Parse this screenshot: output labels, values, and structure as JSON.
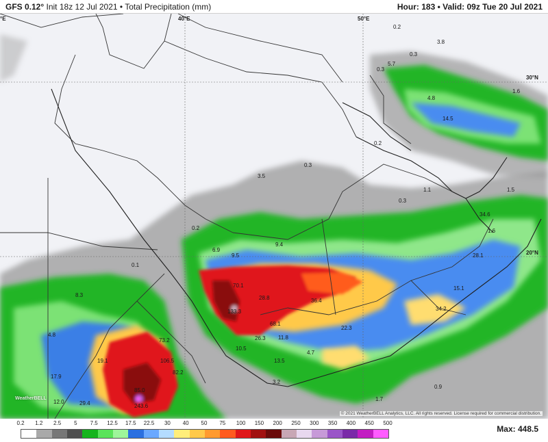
{
  "header": {
    "model": "GFS 0.12°",
    "init": "Init 18z 12 Jul 2021",
    "separator": "•",
    "product": "Total Precipitation (mm)",
    "hour": "Hour: 183",
    "valid": "Valid: 09z Tue 20 Jul 2021"
  },
  "map": {
    "coordinate_labels": {
      "lon_40": "40°E",
      "lon_50": "50°E",
      "lat_30": "30°N",
      "lat_20": "20°N",
      "edge_e": "°E"
    },
    "value_labels": [
      "0.2",
      "3.8",
      "0.3",
      "5.7",
      "0.3",
      "1.6",
      "4.8",
      "14.5",
      "0.2",
      "0.3",
      "1.1",
      "3.5",
      "0.3",
      "1.5",
      "34.6",
      "1.6",
      "0.2",
      "6.9",
      "9.5",
      "9.4",
      "28.1",
      "0.1",
      "70.1",
      "28.8",
      "36.4",
      "15.1",
      "8.3",
      "133.3",
      "68.1",
      "34.2",
      "4.8",
      "73.2",
      "22.3",
      "26.3",
      "11.8",
      "19.1",
      "106.5",
      "10.5",
      "13.5",
      "4.7",
      "82.2",
      "17.9",
      "12.0",
      "85.0",
      "29.4",
      "243.6",
      "1.7",
      "0.9",
      "3.2"
    ],
    "copyright": "© 2021 WeatherBELL Analytics, LLC. All rights reserved. License required for commercial distribution.",
    "logo_text": "WeatherBELL"
  },
  "colorbar": {
    "ticks": [
      "0.2",
      "1.2",
      "2.5",
      "5",
      "7.5",
      "12.5",
      "17.5",
      "22.5",
      "30",
      "40",
      "50",
      "75",
      "100",
      "150",
      "200",
      "250",
      "300",
      "350",
      "400",
      "450",
      "500"
    ],
    "colors": [
      "#ffffff",
      "#a9a9a9",
      "#777777",
      "#4f4f4f",
      "#15b41c",
      "#5ae35a",
      "#9ef59a",
      "#2a6fe0",
      "#6aa8ff",
      "#b4dcff",
      "#ffee7a",
      "#ffc94a",
      "#ff9a2f",
      "#ff5b1f",
      "#e0171a",
      "#a11010",
      "#6a0a0a",
      "#c8a7b5",
      "#e8d8ef",
      "#c79ad8",
      "#9a55c8",
      "#7a2aa8",
      "#c21ec2",
      "#ff5cff"
    ],
    "max_label": "Max: 448.5"
  }
}
